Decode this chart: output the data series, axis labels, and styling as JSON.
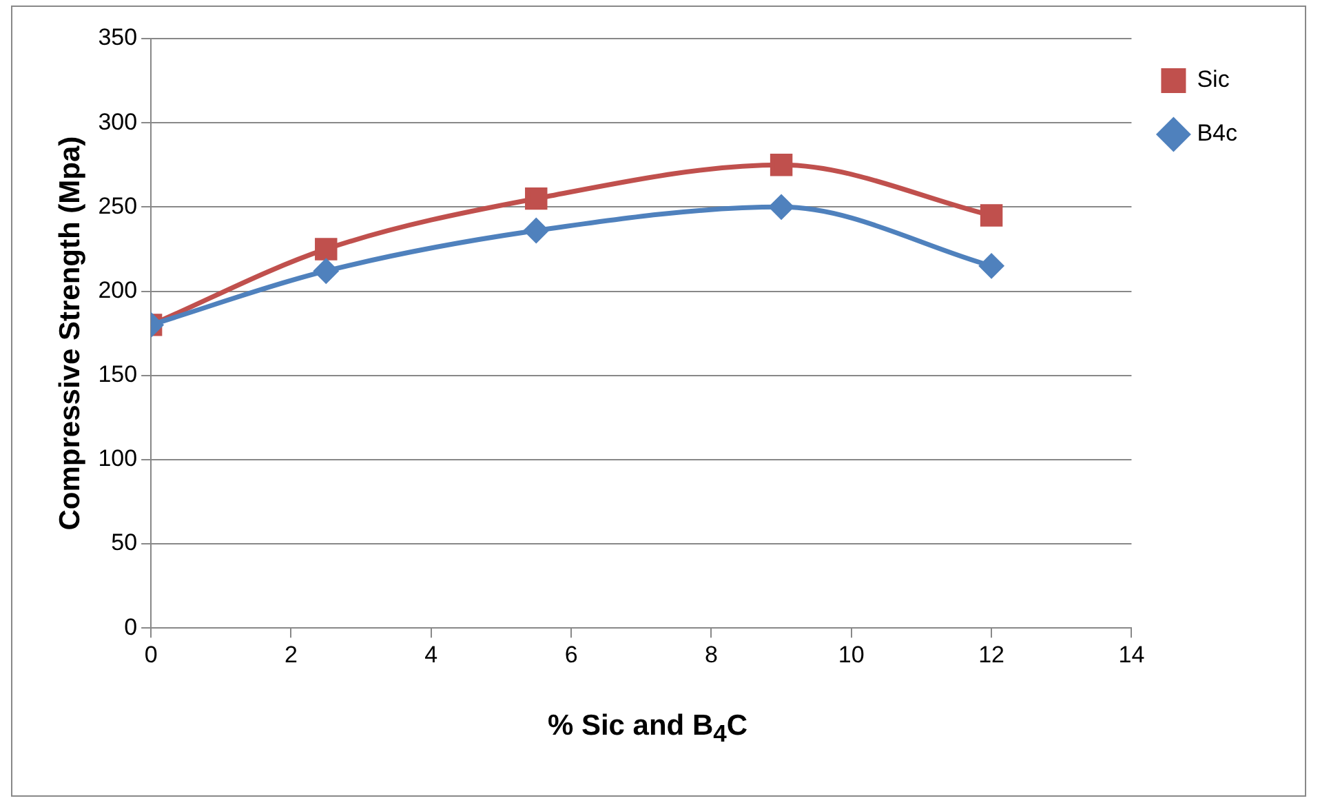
{
  "chart_data": {
    "type": "line",
    "xlabel": "% Sic and B$_{4}$C",
    "ylabel": "Compressive Strength (Mpa)",
    "x": [
      0,
      2.5,
      5.5,
      9,
      12
    ],
    "series": [
      {
        "name": "Sic",
        "color": "#c0504d",
        "marker": "square",
        "values": [
          180,
          225,
          255,
          275,
          245
        ]
      },
      {
        "name": "B4c",
        "color": "#4f81bd",
        "marker": "diamond",
        "values": [
          180,
          212,
          236,
          250,
          215
        ]
      }
    ],
    "xlim": [
      0,
      14
    ],
    "xticks": [
      0,
      2,
      4,
      6,
      8,
      10,
      12,
      14
    ],
    "ylim": [
      0,
      350
    ],
    "yticks": [
      0,
      50,
      100,
      150,
      200,
      250,
      300,
      350
    ],
    "grid": "y",
    "legend": "right"
  }
}
